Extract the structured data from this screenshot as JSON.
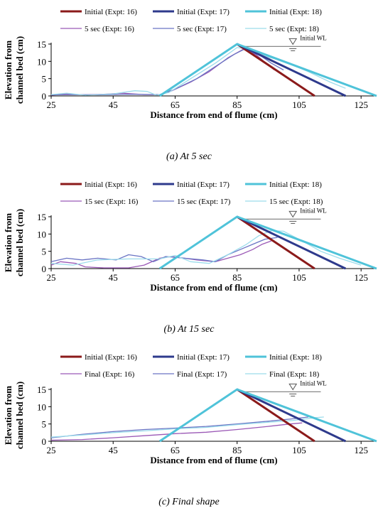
{
  "colors": {
    "expt16": "#8B1A1A",
    "expt17": "#2E3A8C",
    "expt18": "#4FC3D9",
    "later16": "#9B59B6",
    "later17": "#6A74C4",
    "later18": "#9CDCEB"
  },
  "wl_icon": "water-level-triangle-icon",
  "chart_data": [
    {
      "type": "line",
      "title": "(a) At 5 sec",
      "xlabel": "Distance from end of flume (cm)",
      "ylabel_line1": "Elevation from",
      "ylabel_line2": "channel bed (cm)",
      "xlim": [
        25,
        130
      ],
      "ylim": [
        0,
        15
      ],
      "xticks": [
        "25",
        "45",
        "65",
        "85",
        "105",
        "125"
      ],
      "yticks": [
        "0",
        "5",
        "10",
        "15"
      ],
      "annotation": "Initial WL",
      "legend": "top",
      "series": [
        {
          "name": "Initial (Expt: 16)",
          "color": "expt16",
          "width": 3,
          "points": [
            [
              85,
              15
            ],
            [
              110,
              0
            ]
          ]
        },
        {
          "name": "Initial (Expt: 17)",
          "color": "expt17",
          "width": 3,
          "points": [
            [
              85,
              15
            ],
            [
              120,
              0
            ]
          ]
        },
        {
          "name": "Initial (Expt: 18)",
          "color": "expt18",
          "width": 3,
          "points": [
            [
              60,
              0
            ],
            [
              85,
              15
            ],
            [
              130,
              0
            ]
          ]
        },
        {
          "name": "5 sec (Expt: 16)",
          "color": "later16",
          "width": 1.3,
          "points": [
            [
              25,
              0.2
            ],
            [
              30,
              0.6
            ],
            [
              35,
              0.3
            ],
            [
              42,
              0.5
            ],
            [
              48,
              0.8
            ],
            [
              55,
              0.4
            ],
            [
              60,
              0.4
            ],
            [
              64,
              1.5
            ],
            [
              70,
              4
            ],
            [
              76,
              7
            ],
            [
              82,
              11
            ],
            [
              87,
              13.5
            ],
            [
              91,
              12
            ],
            [
              95,
              9
            ],
            [
              97,
              7.5
            ]
          ]
        },
        {
          "name": "5 sec (Expt: 17)",
          "color": "later17",
          "width": 1.3,
          "points": [
            [
              25,
              0.3
            ],
            [
              32,
              0.4
            ],
            [
              40,
              0.3
            ],
            [
              50,
              0.5
            ],
            [
              60,
              0.4
            ],
            [
              65,
              2
            ],
            [
              72,
              5
            ],
            [
              78,
              8.5
            ],
            [
              84,
              12
            ],
            [
              88,
              13.8
            ],
            [
              92,
              12
            ],
            [
              96,
              9.5
            ],
            [
              100,
              7.5
            ]
          ]
        },
        {
          "name": "5 sec (Expt: 18)",
          "color": "later18",
          "width": 1.3,
          "points": [
            [
              25,
              0.4
            ],
            [
              30,
              0.8
            ],
            [
              36,
              0.2
            ],
            [
              45,
              0.6
            ],
            [
              52,
              1.5
            ],
            [
              56,
              1.3
            ],
            [
              59,
              0.2
            ],
            [
              63,
              1
            ],
            [
              70,
              5
            ],
            [
              78,
              9.5
            ],
            [
              85,
              14
            ],
            [
              89,
              13.5
            ],
            [
              94,
              11.5
            ],
            [
              100,
              10
            ],
            [
              108,
              7
            ],
            [
              115,
              4
            ],
            [
              120,
              2.2
            ]
          ]
        }
      ]
    },
    {
      "type": "line",
      "title": "(b) At 15 sec",
      "xlabel": "Distance from end of flume (cm)",
      "ylabel_line1": "Elevation from",
      "ylabel_line2": "channel bed (cm)",
      "xlim": [
        25,
        130
      ],
      "ylim": [
        0,
        15
      ],
      "xticks": [
        "25",
        "45",
        "65",
        "85",
        "105",
        "125"
      ],
      "yticks": [
        "0",
        "5",
        "10",
        "15"
      ],
      "annotation": "Initial WL",
      "legend": "top",
      "series": [
        {
          "name": "Initial (Expt: 16)",
          "color": "expt16",
          "width": 3,
          "points": [
            [
              85,
              15
            ],
            [
              110,
              0
            ]
          ]
        },
        {
          "name": "Initial (Expt: 17)",
          "color": "expt17",
          "width": 3,
          "points": [
            [
              85,
              15
            ],
            [
              120,
              0
            ]
          ]
        },
        {
          "name": "Initial (Expt: 18)",
          "color": "expt18",
          "width": 3,
          "points": [
            [
              60,
              0
            ],
            [
              85,
              15
            ],
            [
              130,
              0
            ]
          ]
        },
        {
          "name": "15 sec (Expt: 16)",
          "color": "later16",
          "width": 1.3,
          "points": [
            [
              25,
              1
            ],
            [
              28,
              2
            ],
            [
              33,
              1.5
            ],
            [
              36,
              0.5
            ],
            [
              42,
              0.2
            ],
            [
              50,
              0.2
            ],
            [
              55,
              1
            ],
            [
              60,
              3
            ],
            [
              64,
              3.5
            ],
            [
              68,
              3
            ],
            [
              72,
              2.5
            ],
            [
              78,
              2
            ],
            [
              82,
              3
            ],
            [
              86,
              4
            ],
            [
              90,
              5.5
            ],
            [
              93,
              7
            ],
            [
              96,
              8
            ]
          ]
        },
        {
          "name": "15 sec (Expt: 17)",
          "color": "later17",
          "width": 1.3,
          "points": [
            [
              25,
              2
            ],
            [
              30,
              3
            ],
            [
              35,
              2.5
            ],
            [
              40,
              3
            ],
            [
              46,
              2.5
            ],
            [
              50,
              4
            ],
            [
              54,
              3.5
            ],
            [
              58,
              2
            ],
            [
              62,
              3.5
            ],
            [
              68,
              3
            ],
            [
              74,
              2.5
            ],
            [
              78,
              2
            ],
            [
              82,
              4
            ],
            [
              86,
              5.5
            ],
            [
              90,
              7
            ],
            [
              94,
              8.5
            ],
            [
              98,
              9
            ]
          ]
        },
        {
          "name": "15 sec (Expt: 18)",
          "color": "later18",
          "width": 1.3,
          "points": [
            [
              25,
              1.5
            ],
            [
              32,
              1
            ],
            [
              40,
              2.5
            ],
            [
              50,
              2.8
            ],
            [
              60,
              2.8
            ],
            [
              65,
              3.8
            ],
            [
              70,
              2
            ],
            [
              76,
              1.5
            ],
            [
              82,
              4
            ],
            [
              88,
              7
            ],
            [
              92,
              9.5
            ],
            [
              96,
              11
            ],
            [
              100,
              10.8
            ],
            [
              106,
              8
            ],
            [
              112,
              5
            ],
            [
              118,
              3
            ],
            [
              125,
              1
            ]
          ]
        }
      ]
    },
    {
      "type": "line",
      "title": "(c) Final shape",
      "xlabel": "Distance from end of flume (cm)",
      "ylabel_line1": "Elevation from",
      "ylabel_line2": "channel bed (cm)",
      "xlim": [
        25,
        130
      ],
      "ylim": [
        0,
        15
      ],
      "xticks": [
        "25",
        "45",
        "65",
        "85",
        "105",
        "125"
      ],
      "yticks": [
        "0",
        "5",
        "10",
        "15"
      ],
      "annotation": "Initial WL",
      "legend": "top",
      "series": [
        {
          "name": "Initial (Expt: 16)",
          "color": "expt16",
          "width": 3,
          "points": [
            [
              85,
              15
            ],
            [
              110,
              0
            ]
          ]
        },
        {
          "name": "Initial (Expt: 17)",
          "color": "expt17",
          "width": 3,
          "points": [
            [
              85,
              15
            ],
            [
              120,
              0
            ]
          ]
        },
        {
          "name": "Initial (Expt: 18)",
          "color": "expt18",
          "width": 3,
          "points": [
            [
              60,
              0
            ],
            [
              85,
              15
            ],
            [
              130,
              0
            ]
          ]
        },
        {
          "name": "Final (Expt: 16)",
          "color": "later16",
          "width": 1.3,
          "points": [
            [
              25,
              0.3
            ],
            [
              35,
              0.5
            ],
            [
              45,
              1
            ],
            [
              55,
              1.6
            ],
            [
              65,
              2.2
            ],
            [
              75,
              2.6
            ],
            [
              85,
              3.4
            ],
            [
              95,
              4.3
            ],
            [
              102,
              5
            ],
            [
              106,
              5.3
            ]
          ]
        },
        {
          "name": "Final (Expt: 17)",
          "color": "later17",
          "width": 1.3,
          "points": [
            [
              25,
              1
            ],
            [
              35,
              2
            ],
            [
              45,
              2.8
            ],
            [
              55,
              3.4
            ],
            [
              65,
              3.8
            ],
            [
              75,
              4.3
            ],
            [
              85,
              5
            ],
            [
              95,
              5.8
            ],
            [
              103,
              6.5
            ],
            [
              108,
              7
            ]
          ]
        },
        {
          "name": "Final (Expt: 18)",
          "color": "later18",
          "width": 1.3,
          "points": [
            [
              25,
              1.2
            ],
            [
              35,
              1.8
            ],
            [
              45,
              2.5
            ],
            [
              55,
              3
            ],
            [
              65,
              3.6
            ],
            [
              75,
              4
            ],
            [
              85,
              4.8
            ],
            [
              95,
              5.5
            ],
            [
              103,
              6
            ],
            [
              110,
              6.8
            ],
            [
              113,
              7
            ]
          ]
        }
      ]
    }
  ]
}
